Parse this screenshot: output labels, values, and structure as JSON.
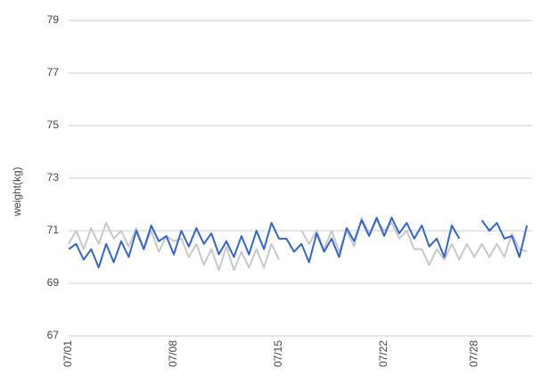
{
  "chart_data": {
    "type": "line",
    "y_label": "weight(kg)",
    "categories": [
      "07/01",
      null,
      null,
      null,
      null,
      null,
      null,
      null,
      null,
      null,
      null,
      null,
      null,
      null,
      "07/08",
      null,
      null,
      null,
      null,
      null,
      null,
      null,
      null,
      null,
      null,
      null,
      null,
      null,
      "07/15",
      null,
      null,
      null,
      null,
      null,
      null,
      null,
      null,
      null,
      null,
      null,
      null,
      null,
      "07/22",
      null,
      null,
      null,
      null,
      null,
      null,
      null,
      null,
      null,
      null,
      null,
      "07/28",
      null,
      null,
      null,
      null,
      null,
      null,
      null
    ],
    "series": [
      {
        "color": "#3366cc",
        "values": [
          70.3,
          70.5,
          69.9,
          70.3,
          69.6,
          70.5,
          69.8,
          70.6,
          70.0,
          71.0,
          70.3,
          71.2,
          70.6,
          70.8,
          70.1,
          71.0,
          70.4,
          71.1,
          70.5,
          70.9,
          70.1,
          70.6,
          70.0,
          70.8,
          70.1,
          71.0,
          70.3,
          71.3,
          70.7,
          70.7,
          70.2,
          70.5,
          69.8,
          70.9,
          70.2,
          70.7,
          70.0,
          71.1,
          70.6,
          71.4,
          70.8,
          71.5,
          70.8,
          71.5,
          70.9,
          71.3,
          70.7,
          71.2,
          70.4,
          70.7,
          70.0,
          71.2,
          70.7,
          null,
          null,
          71.4,
          71.0,
          71.3,
          70.7,
          70.8,
          70.0,
          71.2
        ]
      },
      {
        "color": "#c8c8c8",
        "values": [
          70.5,
          71.0,
          70.3,
          71.1,
          70.5,
          71.3,
          70.7,
          71.0,
          70.4,
          71.1,
          70.3,
          71.0,
          70.2,
          70.8,
          70.6,
          70.7,
          70.0,
          70.5,
          69.7,
          70.3,
          69.5,
          70.4,
          69.5,
          70.2,
          69.6,
          70.3,
          69.6,
          70.5,
          69.9,
          null,
          null,
          71.0,
          70.5,
          71.0,
          70.3,
          71.0,
          70.2,
          71.0,
          70.4,
          71.5,
          70.9,
          71.4,
          71.0,
          71.3,
          70.7,
          71.0,
          70.3,
          70.3,
          69.7,
          70.3,
          69.9,
          70.5,
          69.9,
          70.5,
          70.0,
          70.5,
          70.0,
          70.5,
          70.0,
          70.9,
          70.3,
          70.2
        ]
      }
    ],
    "ylim": [
      67,
      79
    ],
    "yticks": [
      67,
      69,
      71,
      73,
      75,
      77,
      79
    ],
    "grid": true
  }
}
